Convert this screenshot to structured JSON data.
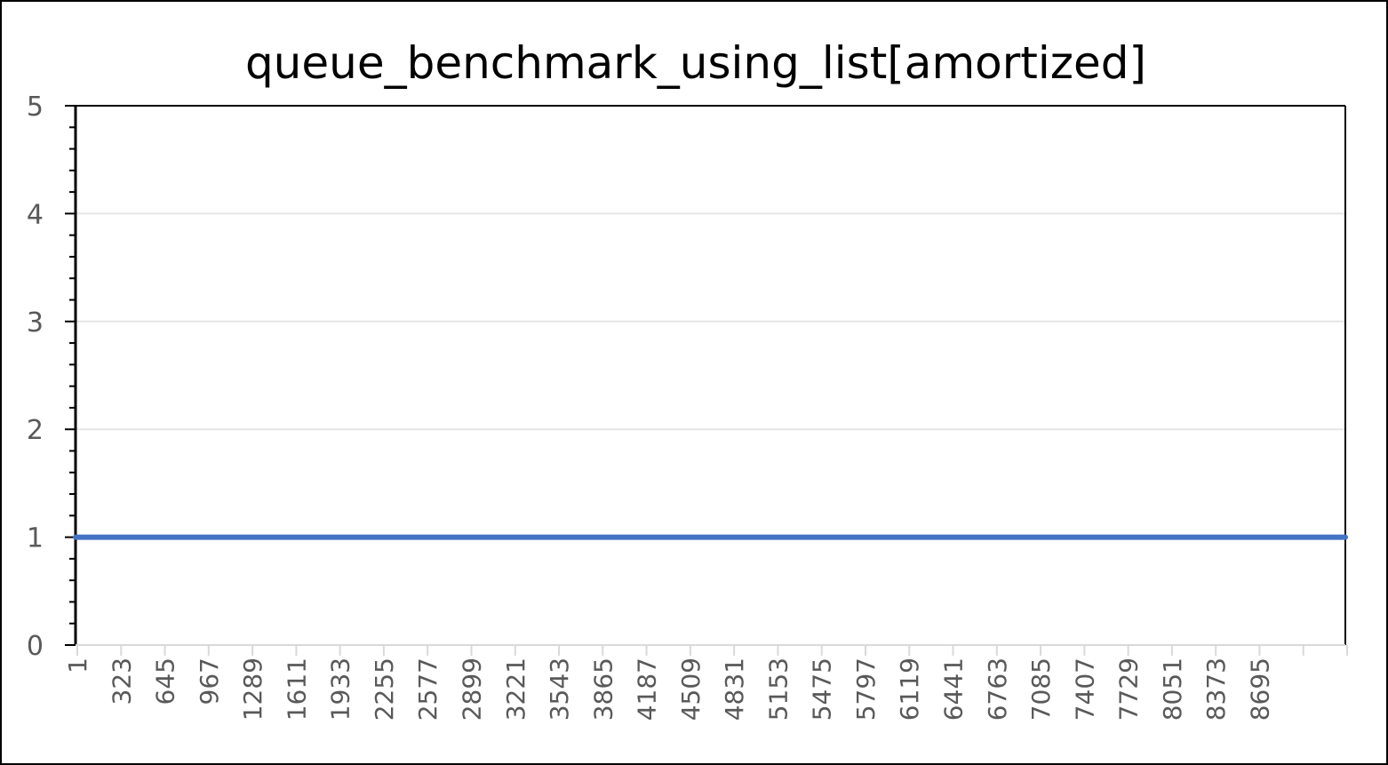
{
  "chart_data": {
    "type": "line",
    "title": "queue_benchmark_using_list[amortized]",
    "xlabel": "",
    "ylabel": "",
    "ylim": [
      0,
      5
    ],
    "yticks": [
      "0",
      "1",
      "2",
      "3",
      "4",
      "5"
    ],
    "x_tick_labels": [
      "1",
      "323",
      "645",
      "967",
      "1289",
      "1611",
      "1933",
      "2255",
      "2577",
      "2899",
      "3221",
      "3543",
      "3865",
      "4187",
      "4509",
      "4831",
      "5153",
      "5475",
      "5797",
      "6119",
      "6441",
      "6763",
      "7085",
      "7407",
      "7729",
      "8051",
      "8373",
      "8695"
    ],
    "xlim": [
      1,
      9017
    ],
    "grid": true,
    "legend": "none",
    "series": [
      {
        "color": "#4472C4",
        "x": [
          1,
          9017
        ],
        "y": [
          1,
          1
        ]
      }
    ]
  }
}
